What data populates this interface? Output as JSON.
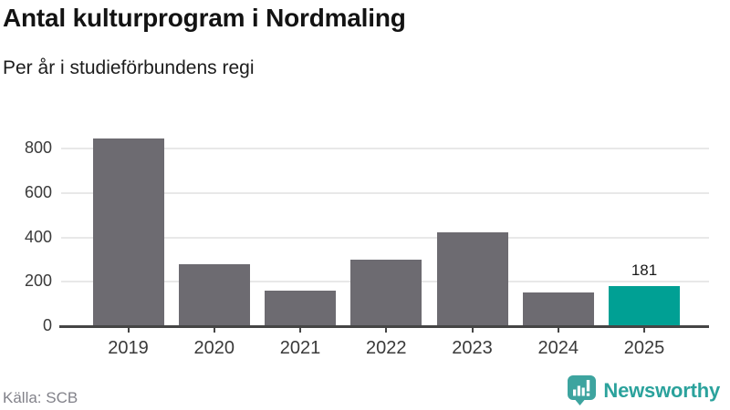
{
  "header": {
    "title": "Antal kulturprogram i Nordmaling",
    "subtitle": "Per år i studieförbundens regi"
  },
  "chart_data": {
    "type": "bar",
    "categories": [
      "2019",
      "2020",
      "2021",
      "2022",
      "2023",
      "2024",
      "2025"
    ],
    "values": [
      845,
      281,
      162,
      302,
      424,
      154,
      181
    ],
    "title": "Antal kulturprogram i Nordmaling",
    "subtitle": "Per år i studieförbundens regi",
    "xlabel": "",
    "ylabel": "",
    "ylim": [
      0,
      900
    ],
    "yticks": [
      0,
      200,
      400,
      600,
      800
    ],
    "grid": true,
    "legend": "none",
    "highlight_category": "2025",
    "annotations": [
      {
        "category": "2025",
        "text": "181"
      }
    ]
  },
  "colors": {
    "bar": "#6d6b71",
    "highlight": "#00a094",
    "grid": "#e8e8e8",
    "axis": "#454545",
    "brand_icon": "#3da49f",
    "wordmark": "#2ba29c"
  },
  "footer": {
    "source": "Källa: SCB",
    "brand_name": "Newsworthy"
  }
}
